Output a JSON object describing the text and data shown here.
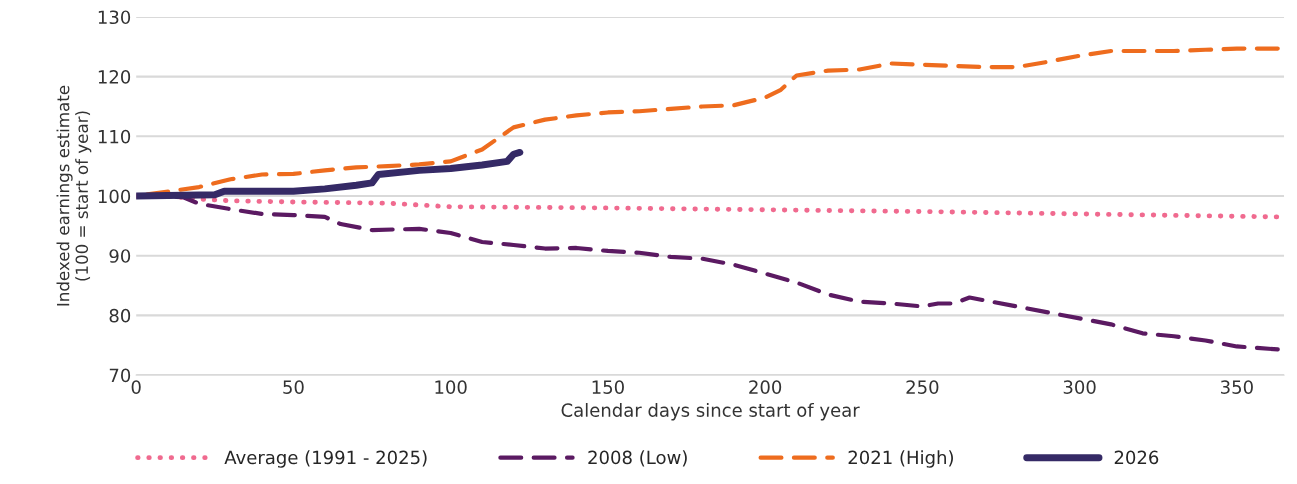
{
  "chart_data": {
    "type": "line",
    "xlabel": "Calendar days since start of year",
    "ylabel": "Indexed earnings estimate\n(100 = start of year)",
    "xlim": [
      0,
      365
    ],
    "ylim": [
      70,
      130
    ],
    "xticks": [
      0,
      50,
      100,
      150,
      200,
      250,
      300,
      350
    ],
    "yticks": [
      70,
      80,
      90,
      100,
      110,
      120,
      130
    ],
    "grid": "y",
    "legend": "bottom",
    "marker": "none",
    "series": [
      {
        "name": "Average (1991 - 2025)",
        "color": "#f06a8f",
        "line_style": "dotted",
        "x": [
          0,
          10,
          20,
          30,
          50,
          80,
          100,
          150,
          200,
          250,
          300,
          363
        ],
        "values": [
          100,
          100,
          99.5,
          99.2,
          99,
          98.8,
          98.2,
          98,
          97.7,
          97.4,
          97,
          96.5
        ]
      },
      {
        "name": "2008 (Low)",
        "color": "#5b1a62",
        "line_style": "dashed",
        "x": [
          0,
          15,
          20,
          30,
          40,
          50,
          60,
          65,
          75,
          90,
          100,
          110,
          120,
          130,
          140,
          150,
          160,
          170,
          180,
          190,
          200,
          210,
          220,
          230,
          240,
          250,
          255,
          260,
          265,
          270,
          280,
          290,
          300,
          310,
          320,
          330,
          340,
          350,
          363
        ],
        "values": [
          100,
          99.8,
          98.7,
          97.8,
          97,
          96.8,
          96.5,
          95.3,
          94.3,
          94.5,
          93.8,
          92.3,
          91.8,
          91.2,
          91.3,
          90.8,
          90.5,
          89.8,
          89.5,
          88.5,
          87,
          85.5,
          83.5,
          82.3,
          82,
          81.5,
          82,
          82,
          83,
          82.5,
          81.5,
          80.5,
          79.5,
          78.5,
          77,
          76.5,
          75.8,
          74.8,
          74.3
        ]
      },
      {
        "name": "2021 (High)",
        "color": "#ee6c1e",
        "line_style": "dashed",
        "x": [
          0,
          20,
          30,
          40,
          50,
          60,
          70,
          80,
          90,
          100,
          110,
          120,
          130,
          140,
          150,
          160,
          170,
          180,
          190,
          200,
          205,
          210,
          220,
          230,
          240,
          250,
          260,
          270,
          280,
          290,
          300,
          310,
          320,
          330,
          340,
          350,
          363
        ],
        "values": [
          100,
          101.5,
          102.8,
          103.6,
          103.7,
          104.3,
          104.8,
          105,
          105.3,
          105.8,
          107.8,
          111.5,
          112.8,
          113.5,
          114,
          114.2,
          114.6,
          115,
          115.2,
          116.5,
          117.8,
          120.2,
          121,
          121.2,
          122.2,
          122,
          121.8,
          121.6,
          121.6,
          122.5,
          123.5,
          124.3,
          124.3,
          124.3,
          124.5,
          124.7,
          124.7
        ]
      },
      {
        "name": "2026",
        "color": "#352a66",
        "line_style": "solid",
        "x": [
          0,
          25,
          28,
          50,
          60,
          70,
          75,
          77,
          90,
          100,
          110,
          118,
          120,
          122
        ],
        "values": [
          100,
          100.2,
          100.8,
          100.8,
          101.2,
          101.8,
          102.2,
          103.6,
          104.3,
          104.6,
          105.2,
          105.8,
          107,
          107.3
        ]
      }
    ]
  }
}
